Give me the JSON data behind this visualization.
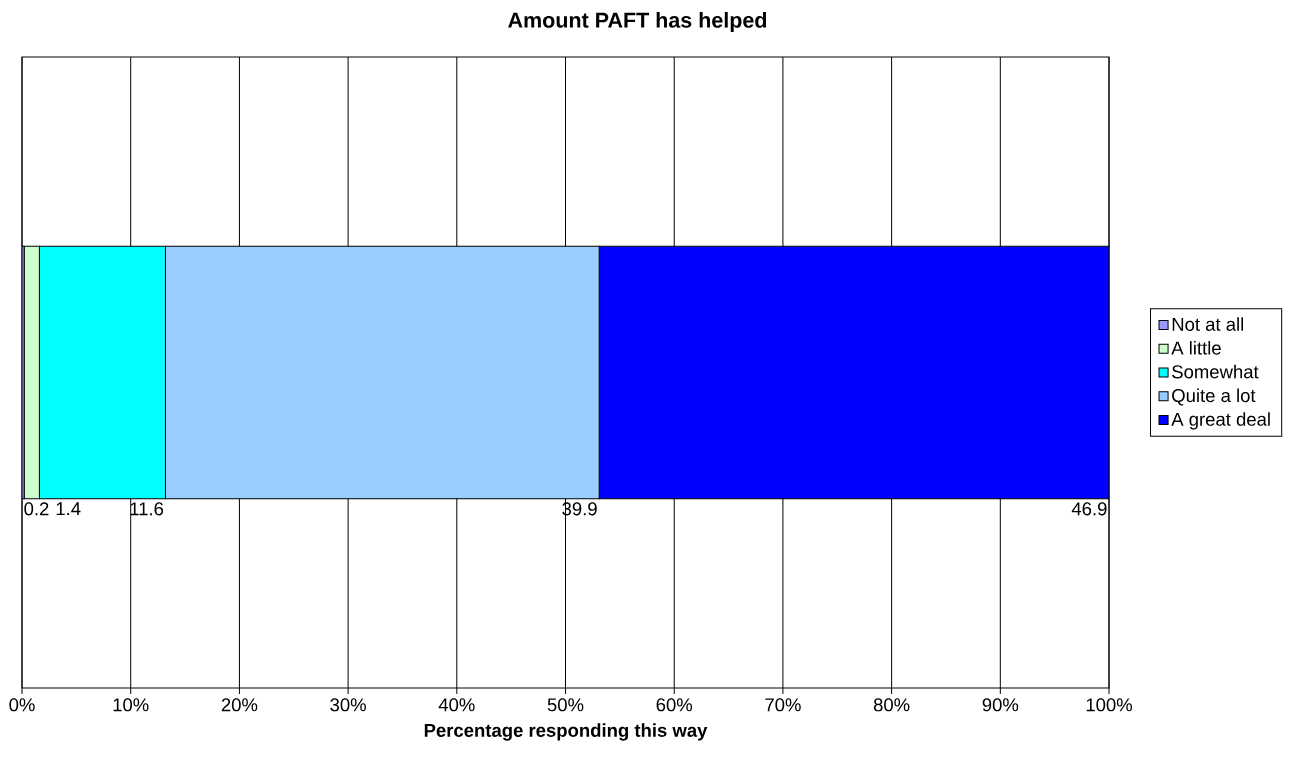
{
  "chart_data": {
    "type": "bar",
    "orientation": "horizontal",
    "stacked": true,
    "title": "Amount PAFT has helped",
    "xlabel": "Percentage responding this way",
    "categories": [
      null
    ],
    "series": [
      {
        "name": "Not at all",
        "color": "#9999ff",
        "values": [
          0.2
        ]
      },
      {
        "name": "A little",
        "color": "#ccffcc",
        "values": [
          1.4
        ]
      },
      {
        "name": "Somewhat",
        "color": "#00ffff",
        "values": [
          11.6
        ]
      },
      {
        "name": "Quite a lot",
        "color": "#99ccff",
        "values": [
          39.9
        ]
      },
      {
        "name": "A great deal",
        "color": "#0000ff",
        "values": [
          46.9
        ]
      }
    ],
    "xlim": [
      0,
      100
    ],
    "xticks": [
      {
        "value": 0,
        "label": "0%"
      },
      {
        "value": 10,
        "label": "10%"
      },
      {
        "value": 20,
        "label": "20%"
      },
      {
        "value": 30,
        "label": "30%"
      },
      {
        "value": 40,
        "label": "40%"
      },
      {
        "value": 50,
        "label": "50%"
      },
      {
        "value": 60,
        "label": "60%"
      },
      {
        "value": 70,
        "label": "70%"
      },
      {
        "value": 80,
        "label": "80%"
      },
      {
        "value": 90,
        "label": "90%"
      },
      {
        "value": 100,
        "label": "100%"
      }
    ],
    "grid": "x",
    "legend": "right",
    "data_labels": true
  }
}
